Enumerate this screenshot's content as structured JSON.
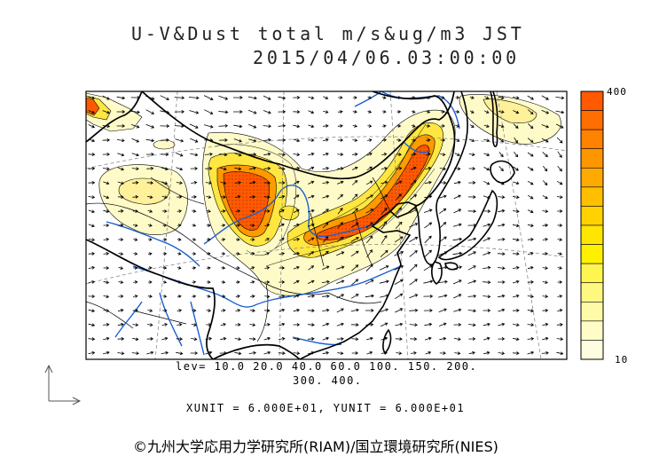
{
  "title": {
    "main": "U-V&Dust total m/s&ug/m3 JST",
    "datetime": "2015/04/06.03:00:00"
  },
  "colorbar": {
    "max_label": "400",
    "min_label": "10",
    "colors": [
      "#ff5a00",
      "#ff6e00",
      "#ff8200",
      "#ff9600",
      "#ffaa00",
      "#ffbe00",
      "#ffd200",
      "#ffe600",
      "#fff000",
      "#fff550",
      "#fff880",
      "#fffaa8",
      "#fffcc8",
      "#fffde0"
    ]
  },
  "contour_levels": {
    "line1": "lev= 10.0 20.0 40.0 60.0 100. 150. 200.",
    "line2": "300. 400."
  },
  "vector_units": "XUNIT = 6.000E+01, YUNIT = 6.000E+01",
  "copyright": "©九州大学応用力学研究所(RIAM)/国立環境研究所(NIES)",
  "colors": {
    "dust_pale": "#fffbc8",
    "dust_light": "#fff09a",
    "dust_yellow": "#ffe640",
    "dust_orange": "#ff9a00",
    "dust_red": "#ff5a00",
    "river": "#1a5fd0",
    "coast": "#000000",
    "grid": "#8a8a8a"
  },
  "icons": {
    "axis": "xy-axis-arrows-icon"
  }
}
